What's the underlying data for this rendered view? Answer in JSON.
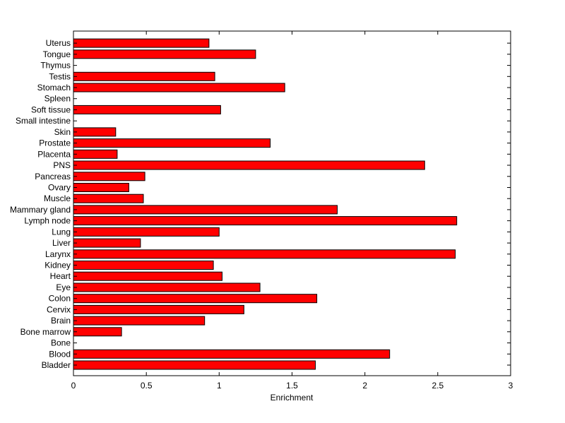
{
  "chart_data": {
    "type": "bar",
    "orientation": "horizontal",
    "title": "",
    "xlabel": "Enrichment",
    "ylabel": "",
    "xlim": [
      0,
      3
    ],
    "xticks": [
      "0",
      "0.5",
      "1",
      "1.5",
      "2",
      "2.5",
      "3"
    ],
    "grid": false,
    "bar_color": "#ff0000",
    "bar_edge_color": "#000000",
    "categories": [
      "Bladder",
      "Blood",
      "Bone",
      "Bone marrow",
      "Brain",
      "Cervix",
      "Colon",
      "Eye",
      "Heart",
      "Kidney",
      "Larynx",
      "Liver",
      "Lung",
      "Lymph node",
      "Mammary gland",
      "Muscle",
      "Ovary",
      "Pancreas",
      "PNS",
      "Placenta",
      "Prostate",
      "Skin",
      "Small intestine",
      "Soft tissue",
      "Spleen",
      "Stomach",
      "Testis",
      "Thymus",
      "Tongue",
      "Uterus"
    ],
    "values": [
      1.66,
      2.17,
      0,
      0.33,
      0.9,
      1.17,
      1.67,
      1.28,
      1.02,
      0.96,
      2.62,
      0.46,
      1.0,
      2.63,
      1.81,
      0.48,
      0.38,
      0.49,
      2.41,
      0.3,
      1.35,
      0.29,
      0,
      1.01,
      0,
      1.45,
      0.97,
      0,
      1.25,
      0.93
    ]
  }
}
